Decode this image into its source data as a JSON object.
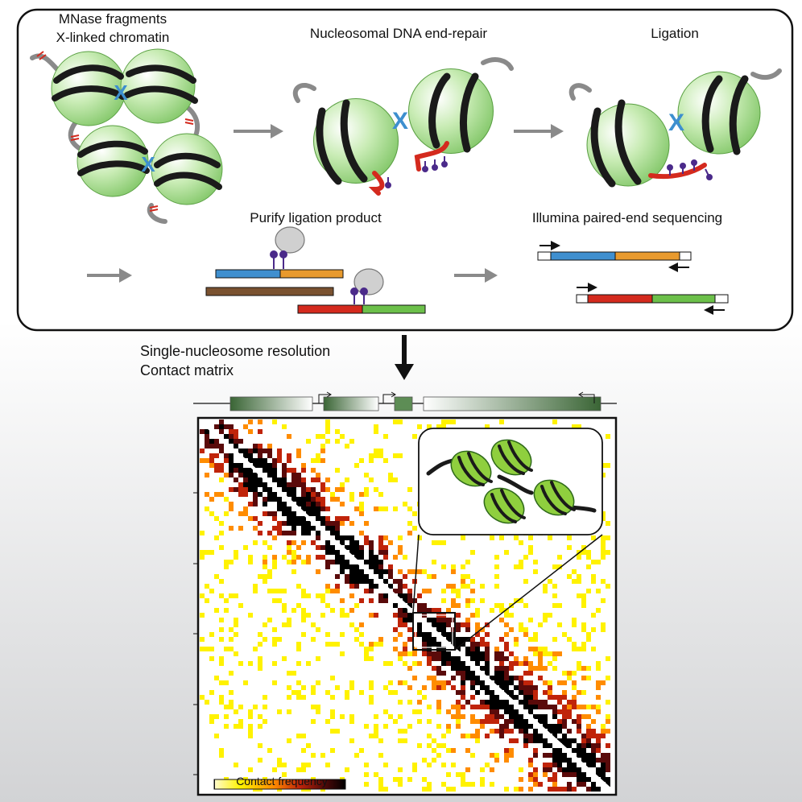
{
  "labels": {
    "step1_line1": "MNase fragments",
    "step1_line2": "X-linked chromatin",
    "step2": "Nucleosomal DNA end-repair",
    "step3": "Ligation",
    "step4": "Purify ligation product",
    "step5": "Illumina paired-end sequencing",
    "result_line1": "Single-nucleosome resolution",
    "result_line2": "Contact matrix",
    "colorbar": "Contact frequency",
    "crosslink": "X"
  },
  "colors": {
    "nucleosome": "#a6d98a",
    "dna": "#8a8a8a",
    "repaired_dna": "#d42a1e",
    "biotin": "#4b2a8a",
    "crosslink": "#3d8fcf",
    "arrow": "#8a8a8a",
    "seg_blue": "#3f8fcf",
    "seg_orange": "#e89a2e",
    "seg_brown": "#7a5230",
    "seg_red": "#d42a1e",
    "seg_green": "#6cc04a",
    "gene": "#3f6b3a"
  },
  "heatmap": {
    "colorscale": [
      "#fffce0",
      "#fff200",
      "#ff8c00",
      "#c0240a",
      "#5a0a0a",
      "#000000"
    ]
  }
}
